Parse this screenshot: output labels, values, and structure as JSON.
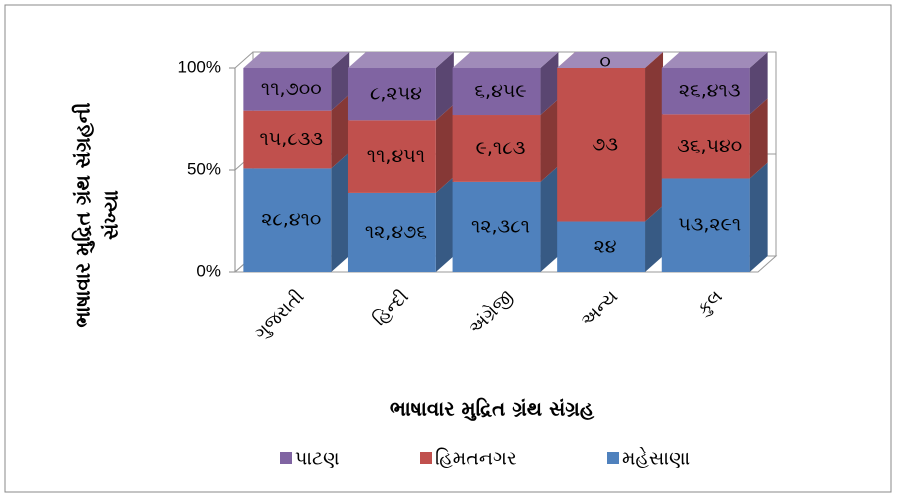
{
  "chart_data": {
    "type": "bar",
    "stacking": "percent",
    "x_label": "ભાષાવાર મુદ્રિત ગ્રંથ સંગ્રહ",
    "y_label": [
      "ભાષાવાર મુદ્રિત ગ્રંથ સંગ્રહની",
      "સંખ્યા"
    ],
    "categories": [
      "ગુજરાતી",
      "હિન્દી",
      "અંગ્રેજી",
      "અન્ય",
      "કુલ"
    ],
    "series": [
      {
        "name": "મહેસાણા",
        "color": "#4f81bd",
        "values": [
          28410,
          12476,
          12381,
          24,
          53291
        ],
        "value_labels": [
          "૨૮,૪૧૦",
          "૧૨,૪૭૬",
          "૧૨,૩૮૧",
          "૨૪",
          "૫૩,૨૯૧"
        ]
      },
      {
        "name": "હિમતનગર",
        "color": "#c0504d",
        "values": [
          15833,
          11451,
          9183,
          73,
          36540
        ],
        "value_labels": [
          "૧૫,૮૩૩",
          "૧૧,૪૫૧",
          "૯,૧૮૩",
          "૭૩",
          "૩૬,૫૪૦"
        ]
      },
      {
        "name": "પાટણ",
        "color": "#8064a2",
        "values": [
          11700,
          8254,
          6459,
          0,
          26413
        ],
        "value_labels": [
          "૧૧,૭૦૦",
          "૮,૨૫૪",
          "૬,૪૫૯",
          "૦",
          "૨૬,૪૧૩"
        ]
      }
    ],
    "ylim": [
      0,
      100
    ],
    "yticks": [
      {
        "value": 0,
        "label": "0%"
      },
      {
        "value": 50,
        "label": "50%"
      },
      {
        "value": 100,
        "label": "100%"
      }
    ],
    "grid": true,
    "legend": "bottom"
  }
}
